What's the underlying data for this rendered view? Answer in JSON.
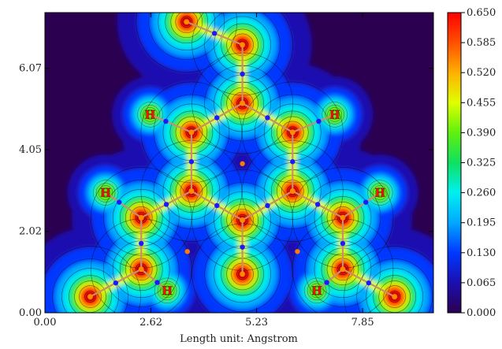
{
  "chart_data": {
    "type": "heatmap",
    "title": "",
    "xlabel": "Length unit: Angstrom",
    "ylabel": "",
    "xlim": [
      0,
      9.6
    ],
    "ylim": [
      0,
      7.45
    ],
    "x_ticks": [
      "0.00",
      "2.62",
      "5.23",
      "7.85"
    ],
    "x_tick_values": [
      0.0,
      2.62,
      5.23,
      7.85
    ],
    "y_ticks": [
      "0.00",
      "2.02",
      "4.05",
      "6.07"
    ],
    "y_tick_values": [
      0.0,
      2.02,
      4.05,
      6.07
    ],
    "colorbar": {
      "min": 0.0,
      "max": 0.65,
      "tick_labels": [
        "0.650",
        "0.585",
        "0.520",
        "0.455",
        "0.390",
        "0.325",
        "0.260",
        "0.195",
        "0.130",
        "0.065",
        "0.000"
      ],
      "tick_values": [
        0.65,
        0.585,
        0.52,
        0.455,
        0.39,
        0.325,
        0.26,
        0.195,
        0.13,
        0.065,
        0.0
      ],
      "colormap": [
        "#2b0050",
        "#1b0fb0",
        "#0038ff",
        "#00a8ff",
        "#00f0f0",
        "#10e060",
        "#60f010",
        "#e0ff00",
        "#ffb000",
        "#ff5000",
        "#ff0000"
      ]
    },
    "atoms": [
      {
        "x": 3.5,
        "y": 7.22
      },
      {
        "x": 4.88,
        "y": 6.65
      },
      {
        "x": 4.88,
        "y": 5.2
      },
      {
        "x": 3.62,
        "y": 4.48
      },
      {
        "x": 6.12,
        "y": 4.48
      },
      {
        "x": 3.62,
        "y": 3.02
      },
      {
        "x": 6.12,
        "y": 3.02
      },
      {
        "x": 4.88,
        "y": 2.3
      },
      {
        "x": 2.38,
        "y": 2.36
      },
      {
        "x": 7.36,
        "y": 2.36
      },
      {
        "x": 2.38,
        "y": 1.08
      },
      {
        "x": 4.88,
        "y": 0.96
      },
      {
        "x": 7.36,
        "y": 1.08
      },
      {
        "x": 1.12,
        "y": 0.4
      },
      {
        "x": 8.64,
        "y": 0.4
      }
    ],
    "hydrogens": [
      {
        "label": "H",
        "x": 2.6,
        "y": 4.92
      },
      {
        "label": "H",
        "x": 7.16,
        "y": 4.92
      },
      {
        "label": "H",
        "x": 1.5,
        "y": 2.98
      },
      {
        "label": "H",
        "x": 8.28,
        "y": 2.98
      },
      {
        "label": "H",
        "x": 3.02,
        "y": 0.55
      },
      {
        "label": "H",
        "x": 6.72,
        "y": 0.55
      }
    ],
    "critical_points": [
      {
        "x": 4.88,
        "y": 3.7
      },
      {
        "x": 3.52,
        "y": 1.52
      },
      {
        "x": 6.24,
        "y": 1.52
      }
    ]
  }
}
